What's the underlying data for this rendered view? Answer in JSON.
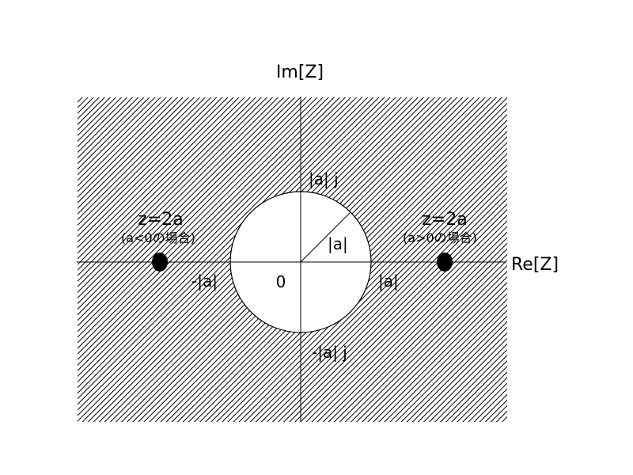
{
  "axes": {
    "imaginary_label": "Im[Z]",
    "real_label": "Re[Z]",
    "origin_label": "0"
  },
  "circle": {
    "top_label": "|a| j",
    "bottom_label": "-|a| j",
    "left_label": "-|a|",
    "right_label": "|a|",
    "radius_label": "|a|"
  },
  "poles": {
    "left": {
      "equation": "z=2a",
      "condition": "(a<0の場合)"
    },
    "right": {
      "equation": "z=2a",
      "condition": "(a>0の場合)"
    }
  },
  "colors": {
    "hatch": "#000000",
    "background": "#ffffff",
    "circle_fill": "#ffffff"
  }
}
